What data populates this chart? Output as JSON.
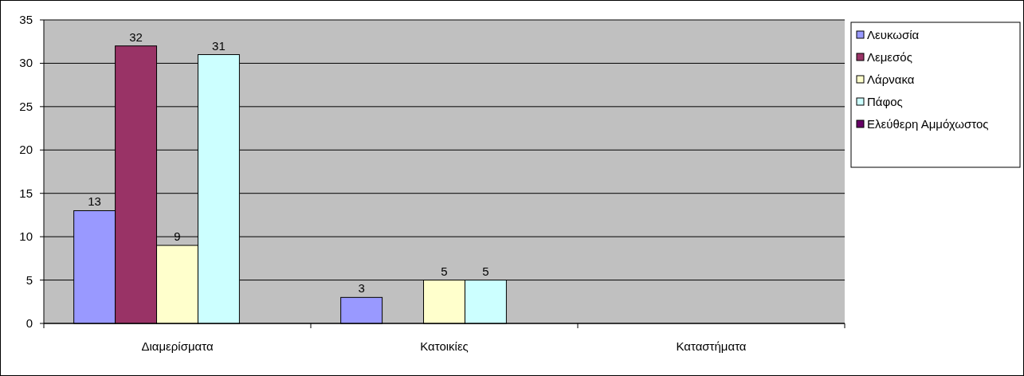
{
  "chart_data": {
    "type": "bar",
    "categories": [
      "Διαμερίσματα",
      "Κατοικίες",
      "Καταστήματα"
    ],
    "series": [
      {
        "name": "Λευκωσία",
        "color": "#9999ff",
        "values": [
          13,
          3,
          null
        ],
        "value_labels": [
          "13",
          "3",
          null
        ]
      },
      {
        "name": "Λεμεσός",
        "color": "#993366",
        "values": [
          32,
          null,
          null
        ],
        "value_labels": [
          "32",
          null,
          null
        ]
      },
      {
        "name": "Λάρνακα",
        "color": "#ffffcc",
        "values": [
          9,
          5,
          null
        ],
        "value_labels": [
          "9",
          "5",
          null
        ]
      },
      {
        "name": "Πάφος",
        "color": "#ccffff",
        "values": [
          31,
          5,
          null
        ],
        "value_labels": [
          "31",
          "5",
          null
        ]
      },
      {
        "name": "Ελεύθερη Αμμόχωστος",
        "color": "#660066",
        "values": [
          null,
          null,
          null
        ],
        "value_labels": [
          null,
          null,
          null
        ]
      }
    ],
    "ylim": [
      0,
      35
    ],
    "yticks": [
      0,
      5,
      10,
      15,
      20,
      25,
      30,
      35
    ],
    "grid": "y",
    "legend": "right"
  }
}
